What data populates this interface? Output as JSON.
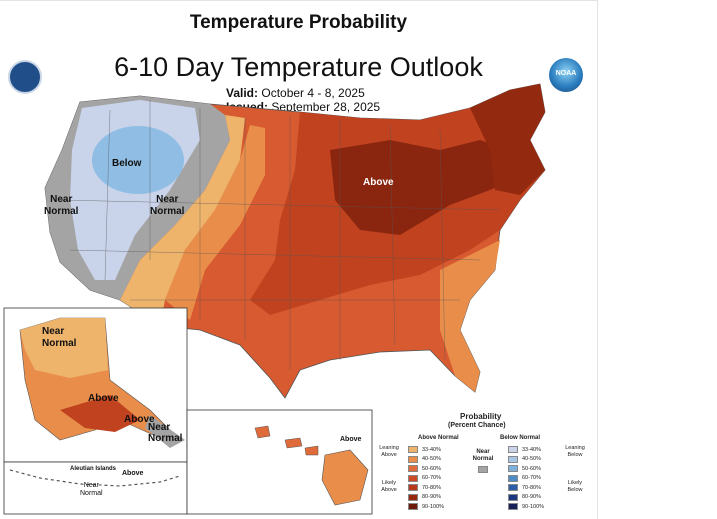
{
  "header": {
    "map_title": "Temperature Probability",
    "outlook_title": "6-10 Day Temperature Outlook",
    "valid_label": "Valid:",
    "valid_value": "October 4 - 8, 2025",
    "issued_label": "Issued:",
    "issued_value": "September 28, 2025"
  },
  "logos": {
    "left": "doc-seal-icon",
    "right": "noaa-logo-icon",
    "right_text": "NOAA"
  },
  "map_labels": {
    "below": "Below",
    "near_normal_west": [
      "Near",
      "Normal"
    ],
    "near_normal_mountain": [
      "Near",
      "Normal"
    ],
    "above_conus": "Above",
    "alaska_near_normal": [
      "Near",
      "Normal"
    ],
    "alaska_above": "Above",
    "alaska_above_southeast": "Above",
    "alaska_near_normal_southeast": [
      "Near",
      "Normal"
    ],
    "aleutian_islands": "Aleutian Islands",
    "aleutian_above": "Above",
    "aleutian_near_normal": [
      "Near",
      "Normal"
    ],
    "hawaii_above": "Above"
  },
  "legend": {
    "title": "Probability",
    "subtitle": "(Percent Chance)",
    "above_header": "Above Normal",
    "below_header": "Below Normal",
    "near_label": [
      "Near",
      "Normal"
    ],
    "leaning_above": [
      "Leaning",
      "Above"
    ],
    "likely_above": [
      "Likely",
      "Above"
    ],
    "leaning_below": [
      "Leaning",
      "Below"
    ],
    "likely_below": [
      "Likely",
      "Below"
    ],
    "ranges": [
      "33-40%",
      "40-50%",
      "50-60%",
      "60-70%",
      "70-80%",
      "80-90%",
      "90-100%"
    ],
    "above_colors": [
      "#eeb46c",
      "#e98e4a",
      "#df6a3a",
      "#cf4a26",
      "#b63a1d",
      "#96280f",
      "#6b1a0a"
    ],
    "below_colors": [
      "#c9d3ea",
      "#a9c6e6",
      "#7fb0dc",
      "#4f8cc6",
      "#2d5fa8",
      "#1d3780",
      "#151f5a"
    ],
    "near_color": "#a4a4a4"
  }
}
